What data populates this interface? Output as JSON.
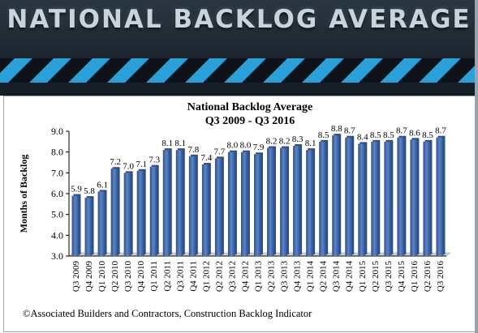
{
  "banner": {
    "title": "NATIONAL BACKLOG AVERAGE"
  },
  "credit": "©Associated Builders and Contractors, Construction Backlog  Indicator",
  "colors": {
    "bar": "#4a75b5",
    "bar_dark": "#2c4f8a",
    "banner_bg": "#1d2833",
    "stripe": "#2aa0d8"
  },
  "chart_data": {
    "type": "bar",
    "title": "National Backlog Average",
    "subtitle": "Q3 2009 - Q3 2016",
    "xlabel": "",
    "ylabel": "Months of Backlog",
    "ylim": [
      3.0,
      9.0
    ],
    "yticks": [
      "3.0",
      "4.0",
      "5.0",
      "6.0",
      "7.0",
      "8.0",
      "9.0"
    ],
    "grid": false,
    "legend": "none",
    "categories": [
      "Q3 2009",
      "Q4 2009",
      "Q1 2010",
      "Q2 2010",
      "Q3 2010",
      "Q4 2010",
      "Q1 2011",
      "Q2 2011",
      "Q3 2011",
      "Q4 2011",
      "Q1 2012",
      "Q2 2012",
      "Q3 2012",
      "Q4 2012",
      "Q1 2013",
      "Q2 2013",
      "Q3 2013",
      "Q4 2013",
      "Q1 2014",
      "Q2 2014",
      "Q3 2014",
      "Q4 2014",
      "Q1 2015",
      "Q2 2015",
      "Q3 2015",
      "Q4 2015",
      "Q1 2016",
      "Q2 2016",
      "Q3 2016"
    ],
    "values": [
      5.9,
      5.8,
      6.1,
      7.2,
      7.0,
      7.1,
      7.3,
      8.1,
      8.1,
      7.8,
      7.4,
      7.7,
      8.0,
      8.0,
      7.9,
      8.2,
      8.2,
      8.3,
      8.1,
      8.5,
      8.8,
      8.7,
      8.4,
      8.5,
      8.5,
      8.7,
      8.6,
      8.5,
      8.7
    ]
  }
}
